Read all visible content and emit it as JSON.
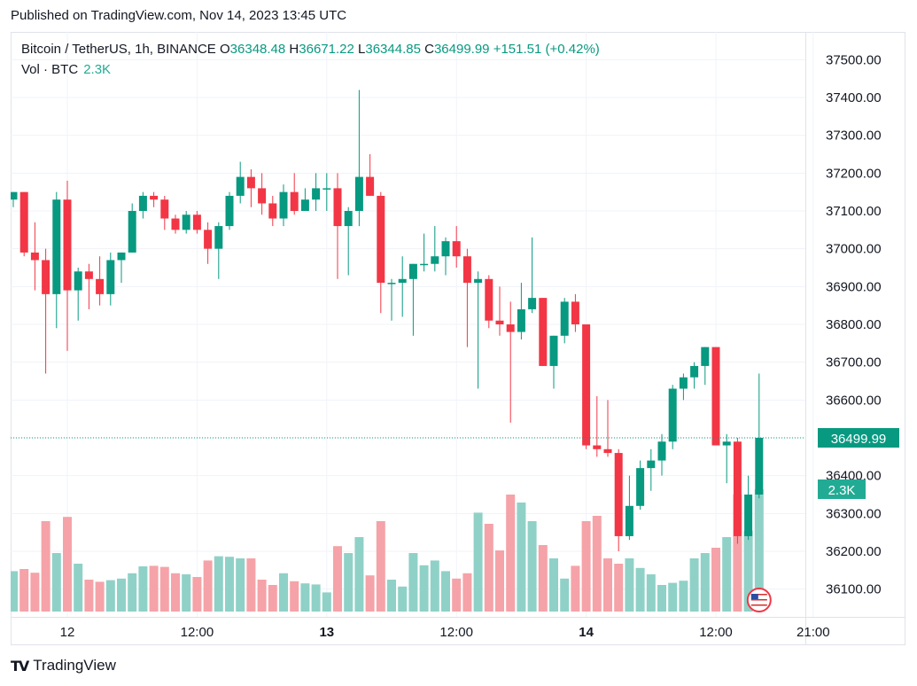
{
  "published_text": "Published on TradingView.com, Nov 14, 2023 13:45 UTC",
  "footer_brand": "TradingView",
  "header": {
    "symbol": "Bitcoin / TetherUS, 1h, BINANCE",
    "open_label": "O",
    "open": "36348.48",
    "high_label": "H",
    "high": "36671.22",
    "low_label": "L",
    "low": "36344.85",
    "close_label": "C",
    "close": "36499.99",
    "change": "+151.51 (+0.42%)"
  },
  "volume": {
    "label": "Vol · BTC",
    "value": "2.3K"
  },
  "colors": {
    "up": "#089981",
    "down": "#f23645",
    "up_vol": "#8fd1c7",
    "down_vol": "#f5a3a8",
    "grid": "#f0f3fa",
    "text": "#131722"
  },
  "chart_data": {
    "type": "candlestick",
    "ylim": [
      36050,
      37550
    ],
    "y_ticks": [
      "37500.00",
      "37400.00",
      "37300.00",
      "37200.00",
      "37100.00",
      "37000.00",
      "36900.00",
      "36800.00",
      "36700.00",
      "36600.00",
      "36500.00",
      "36400.00",
      "36300.00",
      "36200.00",
      "36100.00"
    ],
    "x_ticks": [
      {
        "label": "12",
        "bar": 5,
        "bold": false
      },
      {
        "label": "12:00",
        "bar": 17,
        "bold": false
      },
      {
        "label": "13",
        "bar": 29,
        "bold": true
      },
      {
        "label": "12:00",
        "bar": 41,
        "bold": false
      },
      {
        "label": "14",
        "bar": 53,
        "bold": true
      },
      {
        "label": "12:00",
        "bar": 65,
        "bold": false
      },
      {
        "label": "21:00",
        "bar": 74,
        "bold": false
      }
    ],
    "last_price": 36499.99,
    "last_price_label": "36499.99",
    "last_volume": 2300,
    "last_volume_label": "2.3K",
    "candles": [
      {
        "o": 37130,
        "h": 37150,
        "l": 37110,
        "c": 37150,
        "v": 760
      },
      {
        "o": 37150,
        "h": 37150,
        "l": 36980,
        "c": 36990,
        "v": 800
      },
      {
        "o": 36990,
        "h": 37070,
        "l": 36890,
        "c": 36970,
        "v": 730
      },
      {
        "o": 36970,
        "h": 37000,
        "l": 36670,
        "c": 36880,
        "v": 1700
      },
      {
        "o": 36880,
        "h": 37150,
        "l": 36790,
        "c": 37130,
        "v": 1100
      },
      {
        "o": 37130,
        "h": 37180,
        "l": 36730,
        "c": 36890,
        "v": 1780
      },
      {
        "o": 36890,
        "h": 36950,
        "l": 36810,
        "c": 36940,
        "v": 900
      },
      {
        "o": 36940,
        "h": 36960,
        "l": 36840,
        "c": 36920,
        "v": 600
      },
      {
        "o": 36920,
        "h": 36980,
        "l": 36850,
        "c": 36880,
        "v": 560
      },
      {
        "o": 36880,
        "h": 36990,
        "l": 36850,
        "c": 36970,
        "v": 590
      },
      {
        "o": 36970,
        "h": 36990,
        "l": 36910,
        "c": 36990,
        "v": 620
      },
      {
        "o": 36990,
        "h": 37120,
        "l": 36990,
        "c": 37100,
        "v": 720
      },
      {
        "o": 37100,
        "h": 37150,
        "l": 37080,
        "c": 37140,
        "v": 850
      },
      {
        "o": 37140,
        "h": 37150,
        "l": 37110,
        "c": 37130,
        "v": 860
      },
      {
        "o": 37130,
        "h": 37140,
        "l": 37050,
        "c": 37080,
        "v": 840
      },
      {
        "o": 37080,
        "h": 37090,
        "l": 37040,
        "c": 37050,
        "v": 720
      },
      {
        "o": 37050,
        "h": 37100,
        "l": 37040,
        "c": 37090,
        "v": 700
      },
      {
        "o": 37090,
        "h": 37100,
        "l": 37040,
        "c": 37050,
        "v": 650
      },
      {
        "o": 37050,
        "h": 37070,
        "l": 36960,
        "c": 37000,
        "v": 960
      },
      {
        "o": 37000,
        "h": 37070,
        "l": 36920,
        "c": 37060,
        "v": 1040
      },
      {
        "o": 37060,
        "h": 37150,
        "l": 37050,
        "c": 37140,
        "v": 1030
      },
      {
        "o": 37140,
        "h": 37230,
        "l": 37120,
        "c": 37190,
        "v": 1000
      },
      {
        "o": 37190,
        "h": 37210,
        "l": 37110,
        "c": 37160,
        "v": 1000
      },
      {
        "o": 37160,
        "h": 37200,
        "l": 37090,
        "c": 37120,
        "v": 600
      },
      {
        "o": 37120,
        "h": 37140,
        "l": 37060,
        "c": 37080,
        "v": 500
      },
      {
        "o": 37080,
        "h": 37170,
        "l": 37060,
        "c": 37150,
        "v": 720
      },
      {
        "o": 37150,
        "h": 37200,
        "l": 37090,
        "c": 37100,
        "v": 570
      },
      {
        "o": 37100,
        "h": 37160,
        "l": 37100,
        "c": 37130,
        "v": 530
      },
      {
        "o": 37130,
        "h": 37200,
        "l": 37100,
        "c": 37160,
        "v": 510
      },
      {
        "o": 37160,
        "h": 37200,
        "l": 37100,
        "c": 37160,
        "v": 360
      },
      {
        "o": 37160,
        "h": 37200,
        "l": 36920,
        "c": 37060,
        "v": 1230
      },
      {
        "o": 37060,
        "h": 37110,
        "l": 36930,
        "c": 37100,
        "v": 1100
      },
      {
        "o": 37100,
        "h": 37420,
        "l": 37060,
        "c": 37190,
        "v": 1400
      },
      {
        "o": 37190,
        "h": 37250,
        "l": 37140,
        "c": 37140,
        "v": 680
      },
      {
        "o": 37140,
        "h": 37150,
        "l": 36830,
        "c": 36910,
        "v": 1700
      },
      {
        "o": 36910,
        "h": 36920,
        "l": 36810,
        "c": 36910,
        "v": 600
      },
      {
        "o": 36910,
        "h": 36980,
        "l": 36820,
        "c": 36920,
        "v": 470
      },
      {
        "o": 36920,
        "h": 36960,
        "l": 36770,
        "c": 36960,
        "v": 1100
      },
      {
        "o": 36960,
        "h": 37040,
        "l": 36940,
        "c": 36960,
        "v": 870
      },
      {
        "o": 36960,
        "h": 37060,
        "l": 36940,
        "c": 36980,
        "v": 960
      },
      {
        "o": 36980,
        "h": 37030,
        "l": 36930,
        "c": 37020,
        "v": 760
      },
      {
        "o": 37020,
        "h": 37060,
        "l": 36950,
        "c": 36980,
        "v": 620
      },
      {
        "o": 36980,
        "h": 37000,
        "l": 36740,
        "c": 36910,
        "v": 720
      },
      {
        "o": 36910,
        "h": 36940,
        "l": 36630,
        "c": 36920,
        "v": 1860
      },
      {
        "o": 36920,
        "h": 36930,
        "l": 36790,
        "c": 36810,
        "v": 1650
      },
      {
        "o": 36810,
        "h": 36900,
        "l": 36770,
        "c": 36800,
        "v": 1150
      },
      {
        "o": 36800,
        "h": 36860,
        "l": 36540,
        "c": 36780,
        "v": 2200
      },
      {
        "o": 36780,
        "h": 36910,
        "l": 36760,
        "c": 36840,
        "v": 2050
      },
      {
        "o": 36840,
        "h": 37030,
        "l": 36830,
        "c": 36870,
        "v": 1700
      },
      {
        "o": 36870,
        "h": 36870,
        "l": 36690,
        "c": 36690,
        "v": 1250
      },
      {
        "o": 36690,
        "h": 36770,
        "l": 36630,
        "c": 36770,
        "v": 1000
      },
      {
        "o": 36770,
        "h": 36870,
        "l": 36750,
        "c": 36860,
        "v": 620
      },
      {
        "o": 36860,
        "h": 36880,
        "l": 36780,
        "c": 36800,
        "v": 860
      },
      {
        "o": 36800,
        "h": 36800,
        "l": 36470,
        "c": 36480,
        "v": 1700
      },
      {
        "o": 36480,
        "h": 36610,
        "l": 36450,
        "c": 36470,
        "v": 1800
      },
      {
        "o": 36470,
        "h": 36600,
        "l": 36450,
        "c": 36460,
        "v": 1000
      },
      {
        "o": 36460,
        "h": 36470,
        "l": 36200,
        "c": 36240,
        "v": 900
      },
      {
        "o": 36240,
        "h": 36400,
        "l": 36230,
        "c": 36320,
        "v": 1000
      },
      {
        "o": 36320,
        "h": 36440,
        "l": 36310,
        "c": 36420,
        "v": 820
      },
      {
        "o": 36420,
        "h": 36470,
        "l": 36360,
        "c": 36440,
        "v": 700
      },
      {
        "o": 36440,
        "h": 36510,
        "l": 36400,
        "c": 36490,
        "v": 500
      },
      {
        "o": 36490,
        "h": 36640,
        "l": 36470,
        "c": 36630,
        "v": 540
      },
      {
        "o": 36630,
        "h": 36670,
        "l": 36600,
        "c": 36660,
        "v": 580
      },
      {
        "o": 36660,
        "h": 36700,
        "l": 36630,
        "c": 36690,
        "v": 1000
      },
      {
        "o": 36690,
        "h": 36740,
        "l": 36640,
        "c": 36740,
        "v": 1100
      },
      {
        "o": 36740,
        "h": 36740,
        "l": 36480,
        "c": 36480,
        "v": 1200
      },
      {
        "o": 36480,
        "h": 36510,
        "l": 36380,
        "c": 36490,
        "v": 1400
      },
      {
        "o": 36490,
        "h": 36500,
        "l": 36220,
        "c": 36240,
        "v": 2200
      },
      {
        "o": 36240,
        "h": 36400,
        "l": 36230,
        "c": 36350,
        "v": 1520
      },
      {
        "o": 36350,
        "h": 36670,
        "l": 36340,
        "c": 36500,
        "v": 2300
      }
    ]
  }
}
